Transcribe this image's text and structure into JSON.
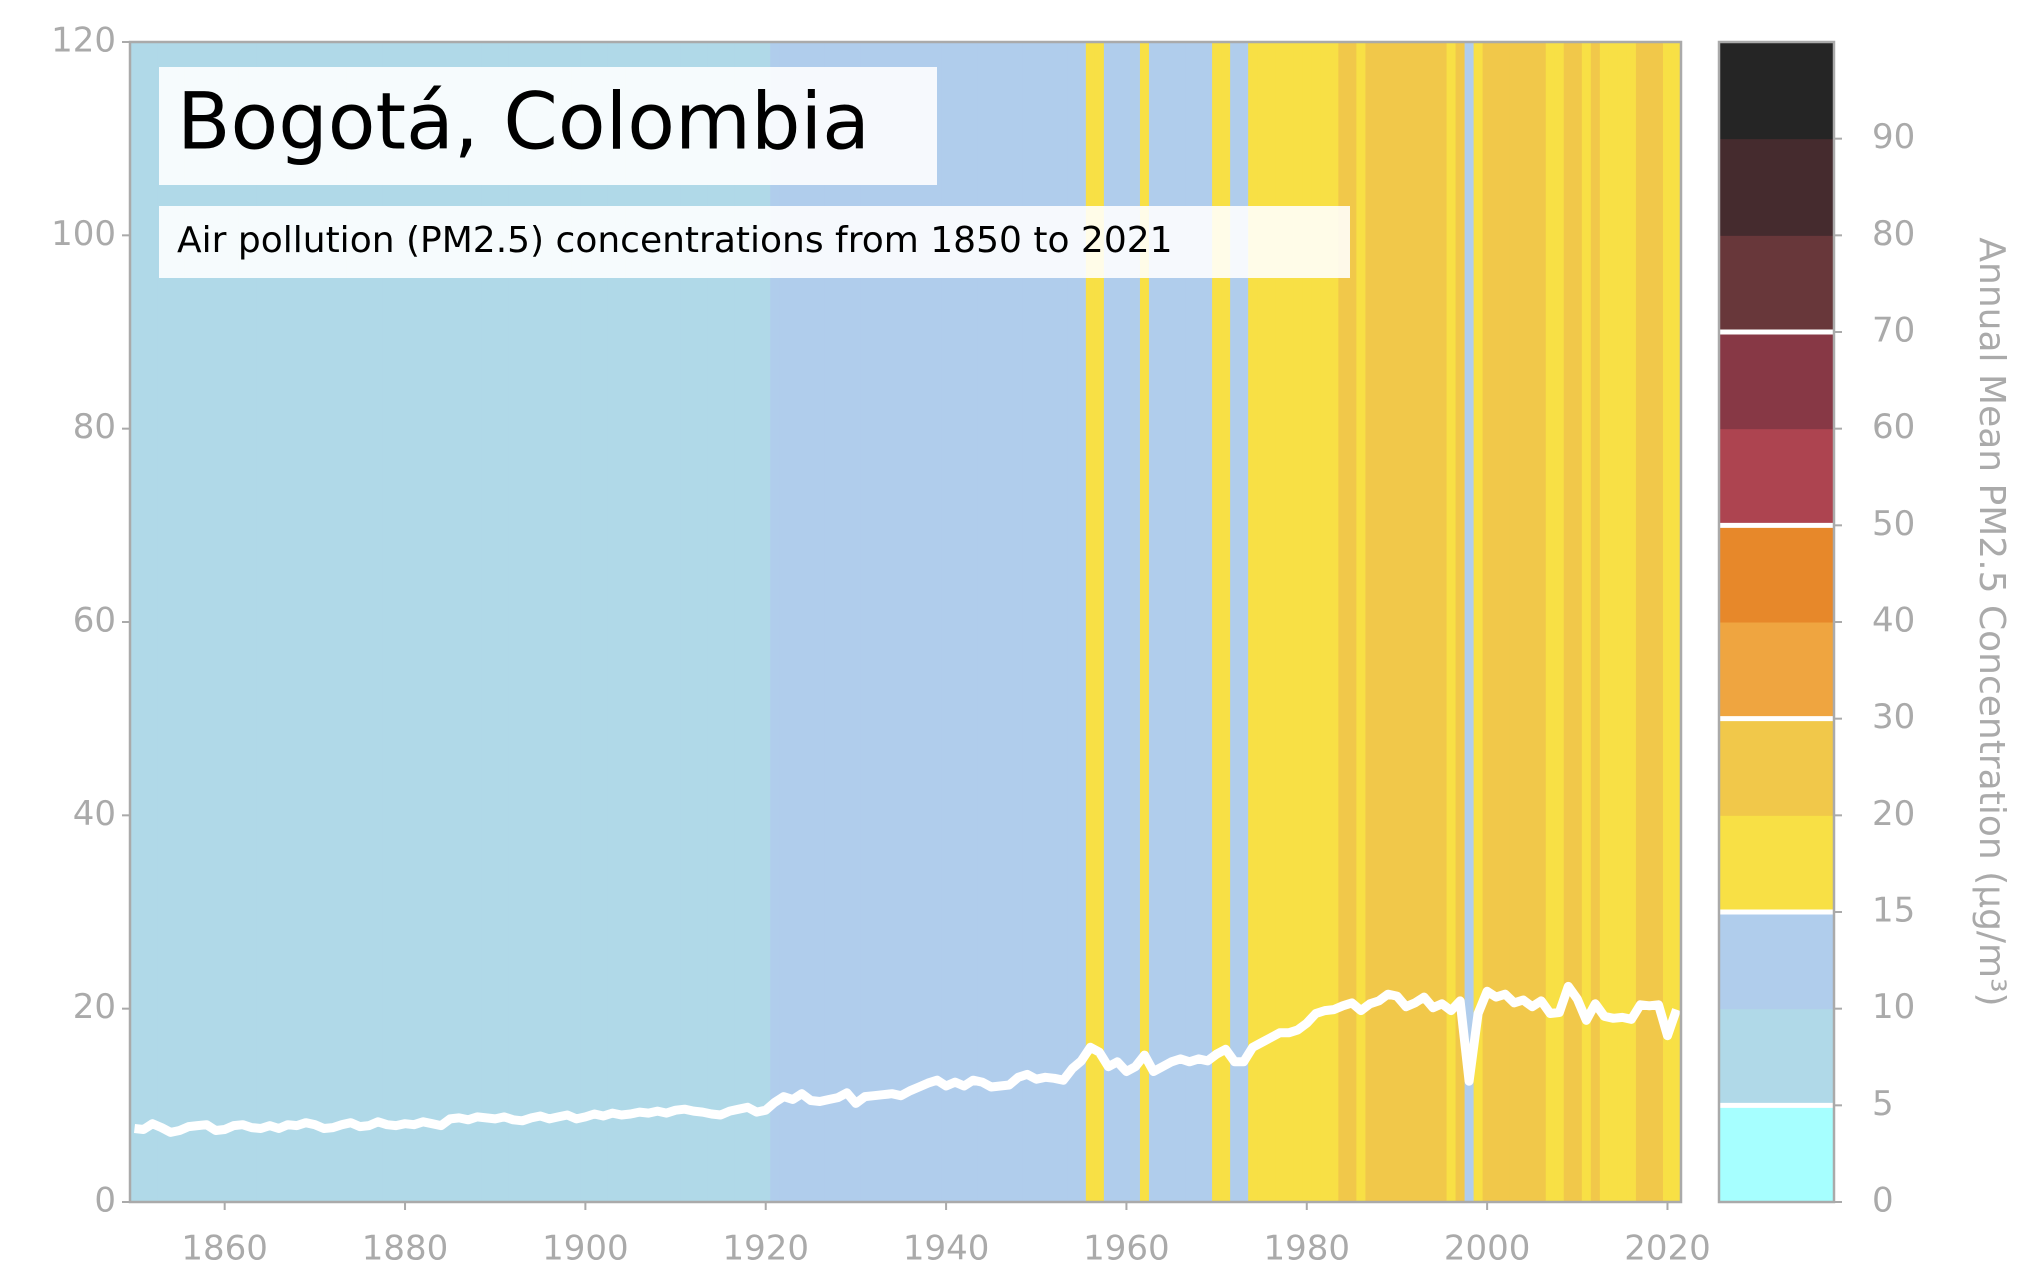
{
  "chart_data": {
    "type": "stripes",
    "title": "Bogotá, Colombia",
    "subtitle": "Air pollution (PM2.5) concentrations from 1850 to 2021",
    "colorbar_label": "Annual Mean PM2.5 Concentration (μg/m³)",
    "x": [
      1850,
      1851,
      1852,
      1853,
      1854,
      1855,
      1856,
      1857,
      1858,
      1859,
      1860,
      1861,
      1862,
      1863,
      1864,
      1865,
      1866,
      1867,
      1868,
      1869,
      1870,
      1871,
      1872,
      1873,
      1874,
      1875,
      1876,
      1877,
      1878,
      1879,
      1880,
      1881,
      1882,
      1883,
      1884,
      1885,
      1886,
      1887,
      1888,
      1889,
      1890,
      1891,
      1892,
      1893,
      1894,
      1895,
      1896,
      1897,
      1898,
      1899,
      1900,
      1901,
      1902,
      1903,
      1904,
      1905,
      1906,
      1907,
      1908,
      1909,
      1910,
      1911,
      1912,
      1913,
      1914,
      1915,
      1916,
      1917,
      1918,
      1919,
      1920,
      1921,
      1922,
      1923,
      1924,
      1925,
      1926,
      1927,
      1928,
      1929,
      1930,
      1931,
      1932,
      1933,
      1934,
      1935,
      1936,
      1937,
      1938,
      1939,
      1940,
      1941,
      1942,
      1943,
      1944,
      1945,
      1946,
      1947,
      1948,
      1949,
      1950,
      1951,
      1952,
      1953,
      1954,
      1955,
      1956,
      1957,
      1958,
      1959,
      1960,
      1961,
      1962,
      1963,
      1964,
      1965,
      1966,
      1967,
      1968,
      1969,
      1970,
      1971,
      1972,
      1973,
      1974,
      1975,
      1976,
      1977,
      1978,
      1979,
      1980,
      1981,
      1982,
      1983,
      1984,
      1985,
      1986,
      1987,
      1988,
      1989,
      1990,
      1991,
      1992,
      1993,
      1994,
      1995,
      1996,
      1997,
      1998,
      1999,
      2000,
      2001,
      2002,
      2003,
      2004,
      2005,
      2006,
      2007,
      2008,
      2009,
      2010,
      2011,
      2012,
      2013,
      2014,
      2015,
      2016,
      2017,
      2018,
      2019,
      2020,
      2021
    ],
    "values": [
      7.6,
      7.5,
      8.1,
      7.7,
      7.2,
      7.4,
      7.8,
      7.9,
      8.0,
      7.4,
      7.5,
      7.9,
      8.0,
      7.7,
      7.6,
      7.9,
      7.6,
      8.0,
      7.9,
      8.2,
      8.0,
      7.6,
      7.7,
      8.0,
      8.2,
      7.8,
      7.9,
      8.3,
      8.0,
      7.9,
      8.1,
      8.0,
      8.3,
      8.1,
      7.9,
      8.6,
      8.7,
      8.5,
      8.8,
      8.7,
      8.6,
      8.8,
      8.5,
      8.4,
      8.7,
      8.9,
      8.6,
      8.8,
      9.0,
      8.6,
      8.8,
      9.1,
      8.9,
      9.2,
      9.0,
      9.1,
      9.3,
      9.2,
      9.4,
      9.2,
      9.5,
      9.6,
      9.4,
      9.3,
      9.1,
      9.0,
      9.4,
      9.6,
      9.8,
      9.3,
      9.5,
      10.3,
      10.9,
      10.6,
      11.2,
      10.5,
      10.4,
      10.6,
      10.8,
      11.3,
      10.2,
      10.9,
      11.0,
      11.1,
      11.2,
      11.0,
      11.5,
      11.9,
      12.3,
      12.6,
      12.0,
      12.4,
      12.0,
      12.6,
      12.4,
      11.9,
      12.0,
      12.1,
      12.9,
      13.2,
      12.7,
      12.9,
      12.8,
      12.6,
      13.8,
      14.6,
      16.0,
      15.5,
      14.0,
      14.5,
      13.5,
      14.0,
      15.2,
      13.5,
      14.0,
      14.5,
      14.8,
      14.5,
      14.8,
      14.6,
      15.3,
      15.8,
      14.5,
      14.5,
      16.0,
      16.5,
      17.0,
      17.5,
      17.5,
      17.8,
      18.5,
      19.5,
      19.8,
      19.9,
      20.3,
      20.6,
      19.8,
      20.5,
      20.8,
      21.5,
      21.3,
      20.2,
      20.6,
      21.2,
      20.1,
      20.5,
      19.8,
      20.8,
      12.5,
      19.5,
      21.8,
      21.2,
      21.5,
      20.6,
      20.9,
      20.2,
      20.8,
      19.5,
      19.6,
      22.3,
      21.0,
      18.8,
      20.5,
      19.2,
      19.0,
      19.1,
      18.9,
      20.4,
      20.3,
      20.4,
      17.2,
      19.9
    ],
    "line_color": "#ffffff",
    "xlim": [
      1849.5,
      2021.5
    ],
    "xticks": [
      1860,
      1880,
      1900,
      1920,
      1940,
      1960,
      1980,
      2000,
      2020
    ],
    "ylim": [
      0,
      120
    ],
    "yticks": [
      0,
      20,
      40,
      60,
      80,
      100,
      120
    ],
    "colorbar": {
      "bounds": [
        0,
        5,
        10,
        15,
        20,
        30,
        40,
        50,
        60,
        70,
        80,
        90,
        100
      ],
      "colors": [
        "#a6ffff",
        "#b0d9e8",
        "#b0cdec",
        "#f8e045",
        "#f1c84a",
        "#efa540",
        "#e7882a",
        "#ad4450",
        "#873845",
        "#68373a",
        "#452b2e",
        "#252525"
      ],
      "ticks": [
        0,
        5,
        10,
        15,
        20,
        30,
        40,
        50,
        60,
        70,
        80,
        90
      ],
      "thresholds": [
        5,
        15,
        30,
        50,
        70
      ]
    }
  }
}
